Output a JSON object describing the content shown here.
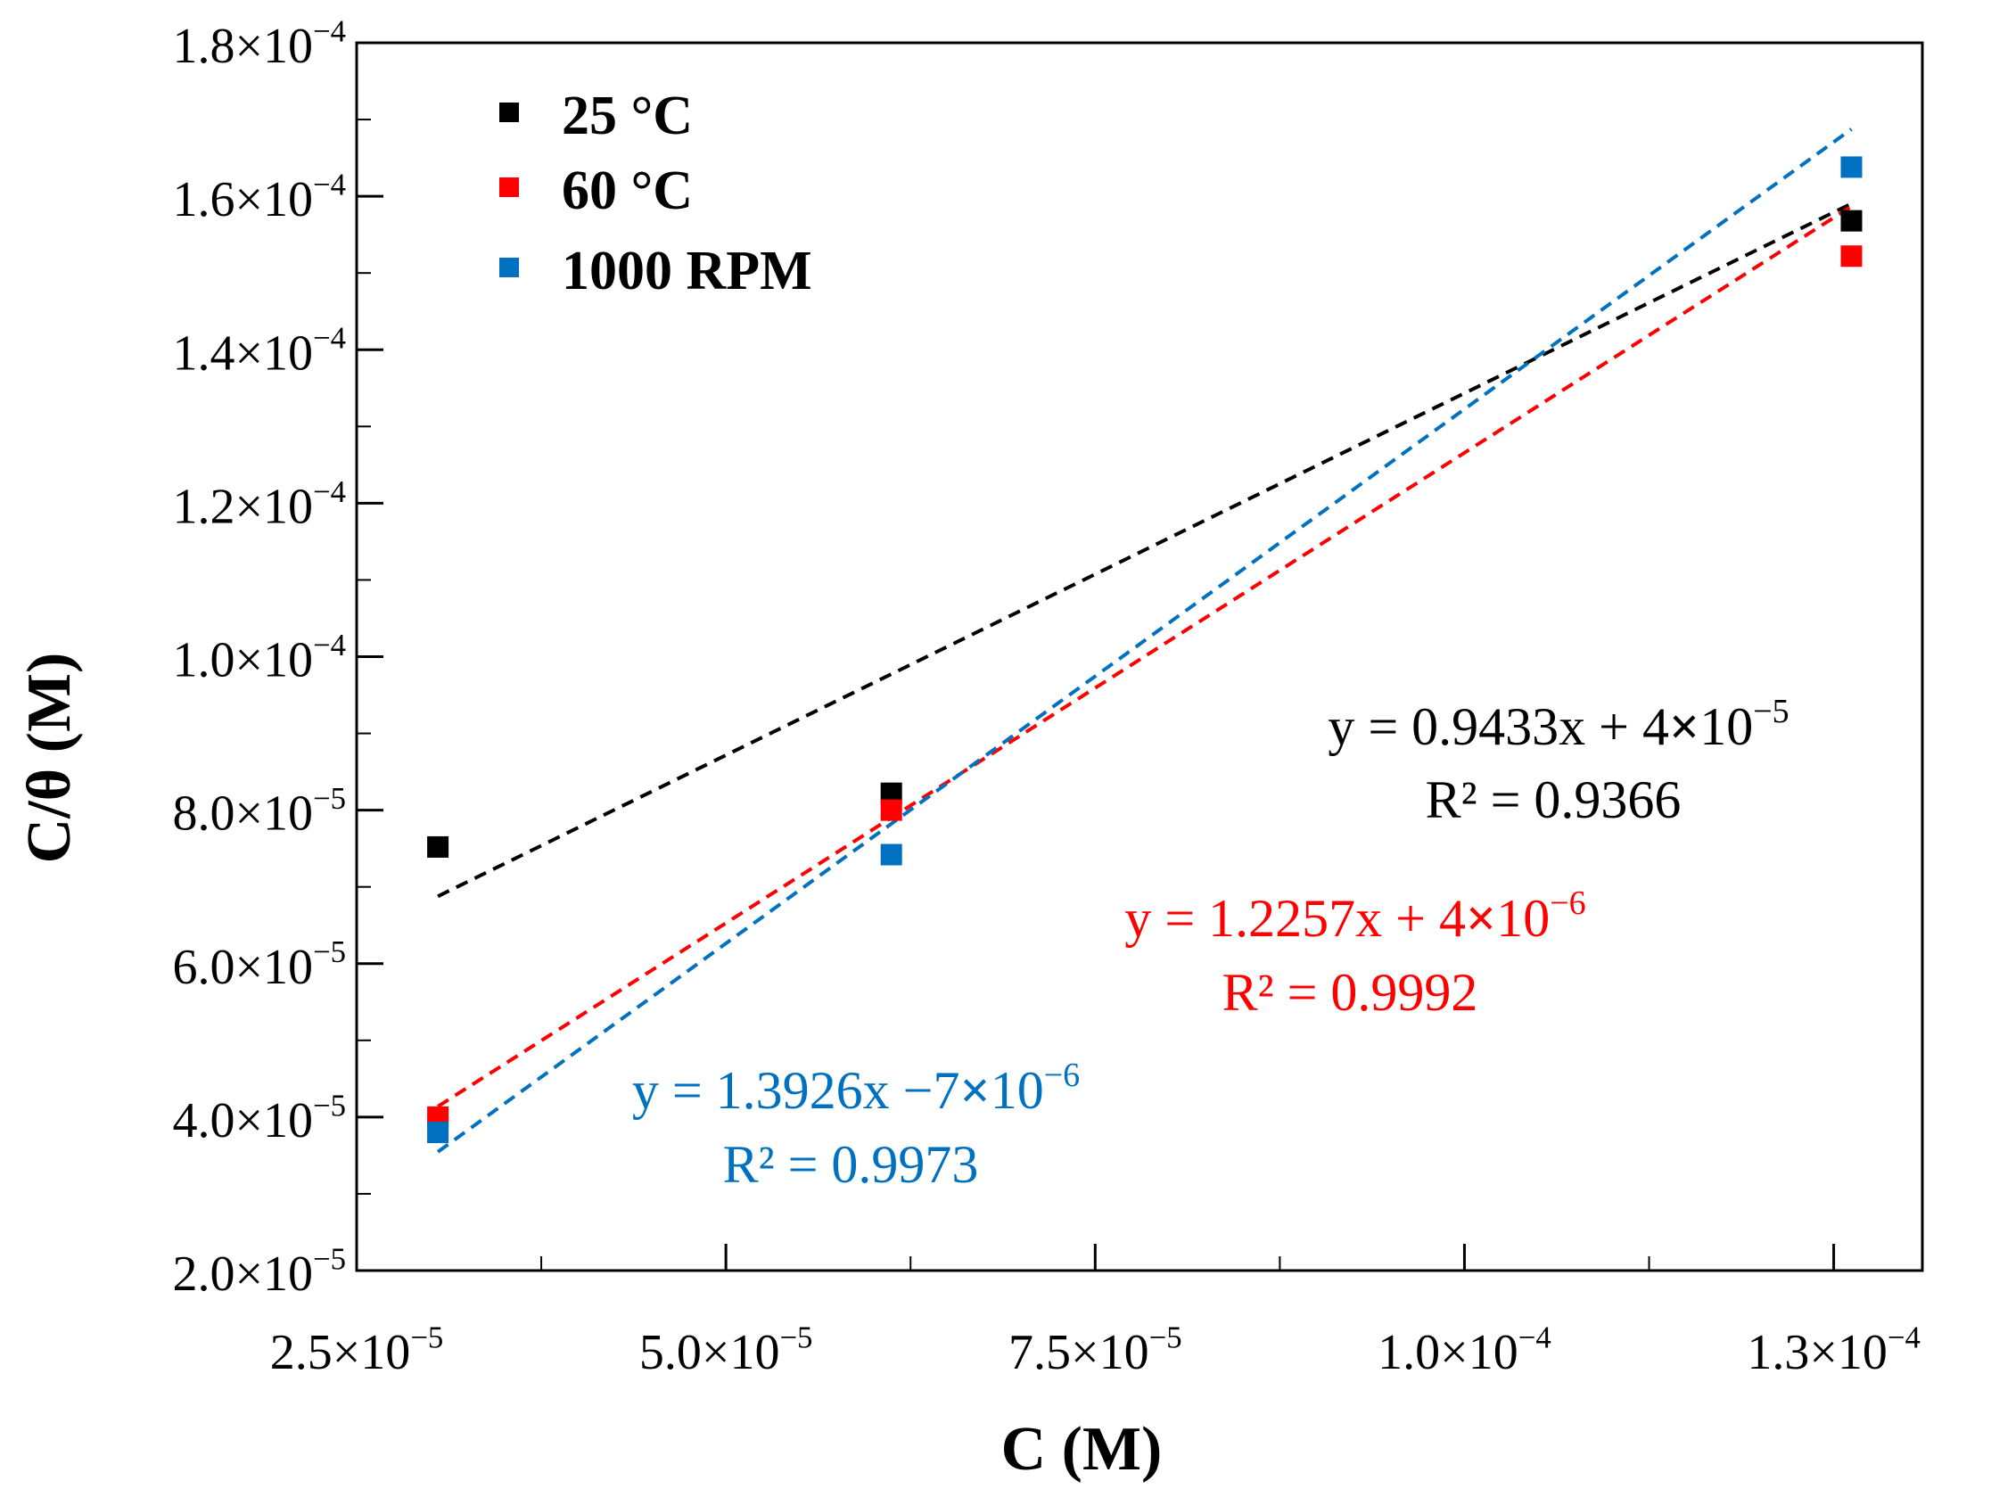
{
  "chart_data": {
    "type": "scatter",
    "title": "",
    "xlabel": "C (M)",
    "ylabel": "C/θ (M)",
    "xlim": [
      2.5e-05,
      0.000131
    ],
    "ylim": [
      2e-05,
      0.00018
    ],
    "x_ticks": [
      {
        "value": 2.5e-05,
        "mantissa": "2.5×10",
        "exp": "−5"
      },
      {
        "value": 5e-05,
        "mantissa": "5.0×10",
        "exp": "−5"
      },
      {
        "value": 7.5e-05,
        "mantissa": "7.5×10",
        "exp": "−5"
      },
      {
        "value": 0.0001,
        "mantissa": "1.0×10",
        "exp": "−4"
      },
      {
        "value": 0.000125,
        "mantissa": "1.3×10",
        "exp": "−4"
      }
    ],
    "x_minor_step": 1.25e-05,
    "y_ticks": [
      {
        "value": 2e-05,
        "mantissa": "2.0×10",
        "exp": "−5"
      },
      {
        "value": 4e-05,
        "mantissa": "4.0×10",
        "exp": "−5"
      },
      {
        "value": 6e-05,
        "mantissa": "6.0×10",
        "exp": "−5"
      },
      {
        "value": 8e-05,
        "mantissa": "8.0×10",
        "exp": "−5"
      },
      {
        "value": 0.0001,
        "mantissa": "1.0×10",
        "exp": "−4"
      },
      {
        "value": 0.00012,
        "mantissa": "1.2×10",
        "exp": "−4"
      },
      {
        "value": 0.00014,
        "mantissa": "1.4×10",
        "exp": "−4"
      },
      {
        "value": 0.00016,
        "mantissa": "1.6×10",
        "exp": "−4"
      },
      {
        "value": 0.00018,
        "mantissa": "1.8×10",
        "exp": "−4"
      }
    ],
    "y_minor_step": 1e-05,
    "grid": false,
    "legend_position": "top-left",
    "series": [
      {
        "name": "25 °C",
        "color": "#000000",
        "points": [
          [
            3.05e-05,
            7.52e-05
          ],
          [
            6.12e-05,
            8.22e-05
          ],
          [
            0.0001262,
            0.0001568
          ]
        ],
        "fit": {
          "slope": 0.9433,
          "intercept": 4e-05,
          "x_range": [
            3.05e-05,
            0.0001262
          ]
        },
        "equation": "y = 0.9433x + 4×10",
        "equation_exp": "−5",
        "r2": "R² = 0.9366"
      },
      {
        "name": "60 °C",
        "color": "#ff0000",
        "points": [
          [
            3.05e-05,
            4e-05
          ],
          [
            6.12e-05,
            8e-05
          ],
          [
            0.0001262,
            0.0001522
          ]
        ],
        "fit": {
          "slope": 1.2257,
          "intercept": 4e-06,
          "x_range": [
            3.05e-05,
            0.0001262
          ]
        },
        "equation": "y = 1.2257x + 4×10",
        "equation_exp": "−6",
        "r2": "R² = 0.9992"
      },
      {
        "name": "1000 RPM",
        "color": "#0070c0",
        "points": [
          [
            3.05e-05,
            3.8e-05
          ],
          [
            6.12e-05,
            7.42e-05
          ],
          [
            0.0001262,
            0.0001638
          ]
        ],
        "fit": {
          "slope": 1.3926,
          "intercept": -7e-06,
          "x_range": [
            3.05e-05,
            0.0001262
          ]
        },
        "equation": "y = 1.3926x −7×10",
        "equation_exp": "−6",
        "r2": "R² = 0.9973"
      }
    ]
  }
}
